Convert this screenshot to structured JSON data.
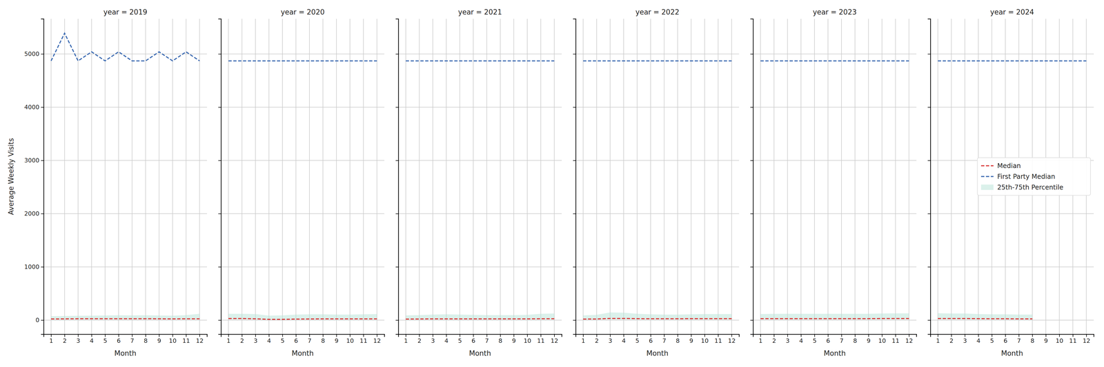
{
  "chart_data": [
    {
      "type": "line",
      "title": "year = 2019",
      "x_label": "Month",
      "y_label": "Average Weekly Visits",
      "x": [
        1,
        2,
        3,
        4,
        5,
        6,
        7,
        8,
        9,
        10,
        11,
        12
      ],
      "xlim": [
        0.45,
        12.55
      ],
      "xticks": [
        1,
        2,
        3,
        4,
        5,
        6,
        7,
        8,
        9,
        10,
        11,
        12
      ],
      "ylim": [
        -264,
        5660
      ],
      "yticks": [
        0,
        1000,
        2000,
        3000,
        4000,
        5000
      ],
      "grid": true,
      "series": [
        {
          "name": "Median",
          "type": "line",
          "line_style": "dashed",
          "color": "#d93a3a",
          "values": [
            22,
            24,
            26,
            26,
            26,
            27,
            26,
            27,
            25,
            24,
            25,
            25
          ]
        },
        {
          "name": "First Party Median",
          "type": "line",
          "line_style": "dashed",
          "color": "#3f6db3",
          "values": [
            4870,
            5390,
            4870,
            5040,
            4870,
            5040,
            4870,
            4870,
            5040,
            4870,
            5040,
            4870
          ]
        },
        {
          "name": "25th-75th Percentile",
          "type": "area",
          "color": "#b7e3d8",
          "low": [
            8,
            8,
            9,
            9,
            9,
            9,
            9,
            9,
            9,
            9,
            9,
            9
          ],
          "high": [
            75,
            78,
            82,
            85,
            88,
            92,
            90,
            92,
            88,
            85,
            95,
            120
          ]
        }
      ]
    },
    {
      "type": "line",
      "title": "year = 2020",
      "x_label": "Month",
      "tick_labels": "x",
      "x": [
        1,
        2,
        3,
        4,
        5,
        6,
        7,
        8,
        9,
        10,
        11,
        12
      ],
      "xlim": [
        0.45,
        12.55
      ],
      "xticks": [
        1,
        2,
        3,
        4,
        5,
        6,
        7,
        8,
        9,
        10,
        11,
        12
      ],
      "ylim": [
        -264,
        5660
      ],
      "yticks": [
        0,
        1000,
        2000,
        3000,
        4000,
        5000
      ],
      "grid": true,
      "series": [
        {
          "name": "Median",
          "type": "line",
          "line_style": "dashed",
          "color": "#d93a3a",
          "values": [
            30,
            30,
            25,
            15,
            15,
            20,
            22,
            24,
            24,
            24,
            24,
            24
          ]
        },
        {
          "name": "First Party Median",
          "type": "line",
          "line_style": "dashed",
          "color": "#3f6db3",
          "values": [
            4870,
            4870,
            4870,
            4870,
            4870,
            4870,
            4870,
            4870,
            4870,
            4870,
            4870,
            4870
          ]
        },
        {
          "name": "25th-75th Percentile",
          "type": "area",
          "color": "#b7e3d8",
          "low": [
            10,
            10,
            8,
            5,
            5,
            7,
            8,
            8,
            8,
            8,
            8,
            8
          ],
          "high": [
            120,
            120,
            115,
            85,
            90,
            105,
            110,
            110,
            105,
            105,
            110,
            115
          ]
        }
      ]
    },
    {
      "type": "line",
      "title": "year = 2021",
      "x_label": "Month",
      "tick_labels": "x",
      "x": [
        1,
        2,
        3,
        4,
        5,
        6,
        7,
        8,
        9,
        10,
        11,
        12
      ],
      "xlim": [
        0.45,
        12.55
      ],
      "xticks": [
        1,
        2,
        3,
        4,
        5,
        6,
        7,
        8,
        9,
        10,
        11,
        12
      ],
      "ylim": [
        -264,
        5660
      ],
      "yticks": [
        0,
        1000,
        2000,
        3000,
        4000,
        5000
      ],
      "grid": true,
      "series": [
        {
          "name": "Median",
          "type": "line",
          "line_style": "dashed",
          "color": "#d93a3a",
          "values": [
            20,
            22,
            24,
            24,
            24,
            24,
            24,
            24,
            24,
            24,
            26,
            26
          ]
        },
        {
          "name": "First Party Median",
          "type": "line",
          "line_style": "dashed",
          "color": "#3f6db3",
          "values": [
            4870,
            4870,
            4870,
            4870,
            4870,
            4870,
            4870,
            4870,
            4870,
            4870,
            4870,
            4870
          ]
        },
        {
          "name": "25th-75th Percentile",
          "type": "area",
          "color": "#b7e3d8",
          "low": [
            8,
            8,
            8,
            8,
            8,
            8,
            8,
            8,
            8,
            8,
            8,
            8
          ],
          "high": [
            90,
            95,
            105,
            110,
            105,
            100,
            95,
            95,
            95,
            100,
            120,
            125
          ]
        }
      ]
    },
    {
      "type": "line",
      "title": "year = 2022",
      "x_label": "Month",
      "tick_labels": "x",
      "x": [
        1,
        2,
        3,
        4,
        5,
        6,
        7,
        8,
        9,
        10,
        11,
        12
      ],
      "xlim": [
        0.45,
        12.55
      ],
      "xticks": [
        1,
        2,
        3,
        4,
        5,
        6,
        7,
        8,
        9,
        10,
        11,
        12
      ],
      "ylim": [
        -264,
        5660
      ],
      "yticks": [
        0,
        1000,
        2000,
        3000,
        4000,
        5000
      ],
      "grid": true,
      "series": [
        {
          "name": "Median",
          "type": "line",
          "line_style": "dashed",
          "color": "#d93a3a",
          "values": [
            20,
            22,
            32,
            32,
            28,
            26,
            26,
            26,
            28,
            28,
            28,
            28
          ]
        },
        {
          "name": "First Party Median",
          "type": "line",
          "line_style": "dashed",
          "color": "#3f6db3",
          "values": [
            4870,
            4870,
            4870,
            4870,
            4870,
            4870,
            4870,
            4870,
            4870,
            4870,
            4870,
            4870
          ]
        },
        {
          "name": "25th-75th Percentile",
          "type": "area",
          "color": "#b7e3d8",
          "low": [
            8,
            8,
            10,
            10,
            9,
            9,
            9,
            9,
            9,
            9,
            9,
            9
          ],
          "high": [
            90,
            100,
            145,
            140,
            120,
            110,
            105,
            105,
            110,
            115,
            115,
            115
          ]
        }
      ]
    },
    {
      "type": "line",
      "title": "year = 2023",
      "x_label": "Month",
      "tick_labels": "x",
      "x": [
        1,
        2,
        3,
        4,
        5,
        6,
        7,
        8,
        9,
        10,
        11,
        12
      ],
      "xlim": [
        0.45,
        12.55
      ],
      "xticks": [
        1,
        2,
        3,
        4,
        5,
        6,
        7,
        8,
        9,
        10,
        11,
        12
      ],
      "ylim": [
        -264,
        5660
      ],
      "yticks": [
        0,
        1000,
        2000,
        3000,
        4000,
        5000
      ],
      "grid": true,
      "series": [
        {
          "name": "Median",
          "type": "line",
          "line_style": "dashed",
          "color": "#d93a3a",
          "values": [
            28,
            28,
            28,
            28,
            28,
            28,
            28,
            28,
            28,
            30,
            30,
            30
          ]
        },
        {
          "name": "First Party Median",
          "type": "line",
          "line_style": "dashed",
          "color": "#3f6db3",
          "values": [
            4870,
            4870,
            4870,
            4870,
            4870,
            4870,
            4870,
            4870,
            4870,
            4870,
            4870,
            4870
          ]
        },
        {
          "name": "25th-75th Percentile",
          "type": "area",
          "color": "#b7e3d8",
          "low": [
            9,
            9,
            9,
            9,
            9,
            9,
            9,
            9,
            9,
            10,
            10,
            10
          ],
          "high": [
            115,
            118,
            120,
            120,
            120,
            120,
            120,
            120,
            120,
            125,
            128,
            128
          ]
        }
      ]
    },
    {
      "type": "line",
      "title": "year = 2024",
      "x_label": "Month",
      "tick_labels": "x",
      "legend": "center right",
      "x": [
        1,
        2,
        3,
        4,
        5,
        6,
        7,
        8,
        9,
        10,
        11,
        12
      ],
      "xlim": [
        0.45,
        12.55
      ],
      "xticks": [
        1,
        2,
        3,
        4,
        5,
        6,
        7,
        8,
        9,
        10,
        11,
        12
      ],
      "ylim": [
        -264,
        5660
      ],
      "yticks": [
        0,
        1000,
        2000,
        3000,
        4000,
        5000
      ],
      "grid": true,
      "series": [
        {
          "name": "Median",
          "type": "line",
          "line_style": "dashed",
          "color": "#d93a3a",
          "values": [
            30,
            30,
            30,
            28,
            26,
            26,
            24,
            24,
            null,
            null,
            null,
            null
          ]
        },
        {
          "name": "First Party Median",
          "type": "line",
          "line_style": "dashed",
          "color": "#3f6db3",
          "values": [
            4870,
            4870,
            4870,
            4870,
            4870,
            4870,
            4870,
            4870,
            4870,
            4870,
            4870,
            4870
          ]
        },
        {
          "name": "25th-75th Percentile",
          "type": "area",
          "color": "#b7e3d8",
          "low": [
            10,
            10,
            10,
            9,
            9,
            9,
            9,
            9,
            null,
            null,
            null,
            null
          ],
          "high": [
            130,
            125,
            125,
            115,
            110,
            110,
            105,
            105,
            null,
            null,
            null,
            null
          ]
        }
      ]
    }
  ]
}
